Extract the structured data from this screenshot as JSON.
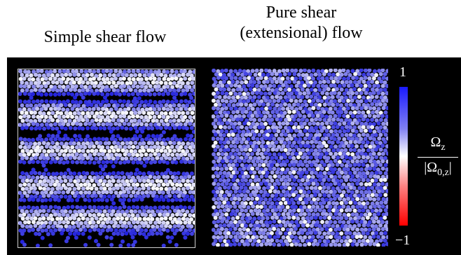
{
  "titles": {
    "left": "Simple shear flow",
    "right_line1": "Pure shear",
    "right_line2": "(extensional) flow"
  },
  "colorbar": {
    "max_label": "1",
    "min_label": "−1",
    "label_numerator_symbol": "Ω",
    "label_numerator_sub": "z",
    "label_denominator_symbol": "|Ω",
    "label_denominator_sub": "0,z",
    "label_denominator_close": "|",
    "colors": {
      "top": "#1a1aff",
      "mid": "#ffffff",
      "bottom": "#ff0000"
    }
  },
  "colors": {
    "background": "#000000",
    "deep_blue": "#2222dd",
    "light_blue": "#b8b8ee",
    "white_particle": "#f4f4f4"
  }
}
